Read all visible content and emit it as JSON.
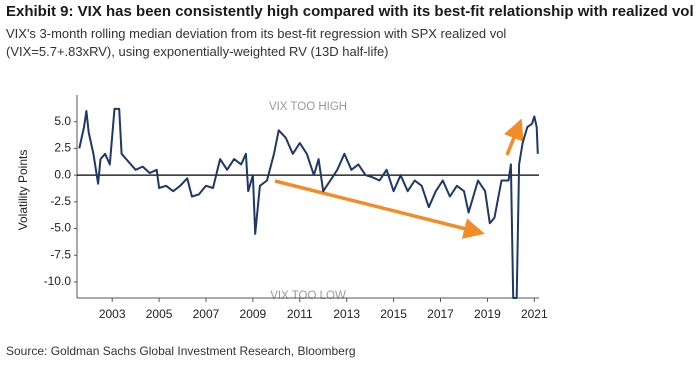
{
  "chart_data": {
    "type": "line",
    "title": "Exhibit 9: VIX has been consistently high compared with its best-fit relationship with realized vol",
    "subtitle": "VIX's 3-month rolling median deviation from its best-fit regression with SPX realized vol (VIX=5.7+.83xRV), using exponentially-weighted RV (13D half-life)",
    "y_label": "Volatility Points",
    "source": "Source: Goldman Sachs Global Investment Research, Bloomberg",
    "annotations": [
      "VIX TOO HIGH",
      "VIX TOO LOW"
    ],
    "color": "#1f3864",
    "xlim": [
      2001.5,
      2021.2
    ],
    "ylim": [
      -11.5,
      7.5
    ],
    "xticks": [
      2003,
      2005,
      2007,
      2009,
      2011,
      2013,
      2015,
      2017,
      2019,
      2021
    ],
    "yticks": [
      {
        "value": 5,
        "label": "5.0"
      },
      2.5,
      {
        "value": 0,
        "label": "0.0"
      },
      -2.5,
      {
        "value": -5,
        "label": "-5.0"
      },
      -7.5,
      {
        "value": -10,
        "label": "-10.0"
      }
    ],
    "x": [
      2001.6,
      2001.8,
      2001.9,
      2002.0,
      2002.2,
      2002.4,
      2002.5,
      2002.7,
      2002.9,
      2003.1,
      2003.3,
      2003.4,
      2003.6,
      2003.8,
      2004.0,
      2004.3,
      2004.6,
      2004.9,
      2005.0,
      2005.3,
      2005.6,
      2005.9,
      2006.2,
      2006.4,
      2006.7,
      2007.0,
      2007.3,
      2007.6,
      2007.9,
      2008.2,
      2008.5,
      2008.7,
      2008.8,
      2009.0,
      2009.1,
      2009.3,
      2009.6,
      2009.9,
      2010.1,
      2010.4,
      2010.7,
      2011.0,
      2011.3,
      2011.6,
      2011.8,
      2012.0,
      2012.3,
      2012.6,
      2012.9,
      2013.2,
      2013.5,
      2013.8,
      2014.1,
      2014.4,
      2014.7,
      2015.0,
      2015.3,
      2015.6,
      2015.9,
      2016.2,
      2016.5,
      2016.8,
      2017.1,
      2017.4,
      2017.7,
      2018.0,
      2018.2,
      2018.4,
      2018.6,
      2018.9,
      2019.1,
      2019.3,
      2019.6,
      2019.9,
      2020.0,
      2020.1,
      2020.25,
      2020.35,
      2020.5,
      2020.7,
      2020.9,
      2021.0,
      2021.1,
      2021.15
    ],
    "values": [
      2.5,
      4.5,
      6.0,
      4.0,
      2.0,
      -0.8,
      1.5,
      2.0,
      1.0,
      6.2,
      6.2,
      2.0,
      1.5,
      1.0,
      0.5,
      0.8,
      0.2,
      0.5,
      -1.2,
      -1.0,
      -1.5,
      -1.0,
      -0.3,
      -2.0,
      -1.8,
      -1.0,
      -1.2,
      1.5,
      0.5,
      1.5,
      1.0,
      2.0,
      -1.5,
      0.0,
      -5.5,
      -1.0,
      -0.5,
      2.0,
      4.2,
      3.5,
      2.0,
      3.0,
      2.0,
      0.0,
      1.5,
      -1.5,
      -0.5,
      0.5,
      2.0,
      0.5,
      1.0,
      0.0,
      -0.2,
      -0.5,
      0.5,
      -1.5,
      0.0,
      -1.5,
      -0.5,
      -1.0,
      -3.0,
      -1.5,
      -0.5,
      -2.0,
      -1.0,
      -1.5,
      -3.5,
      -2.0,
      -0.5,
      -1.5,
      -4.5,
      -4.0,
      -0.5,
      -0.5,
      1.0,
      -11.5,
      -11.5,
      1.0,
      3.0,
      4.5,
      4.8,
      5.5,
      4.5,
      2.0
    ]
  }
}
